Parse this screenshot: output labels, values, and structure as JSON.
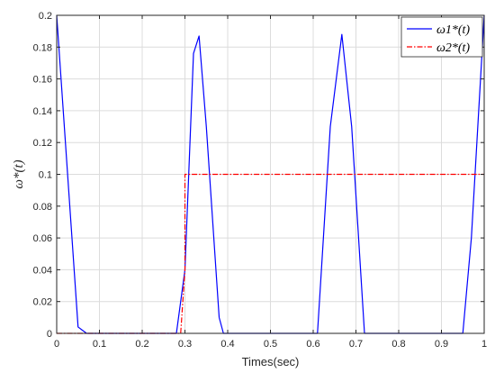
{
  "chart_data": {
    "type": "line",
    "xlabel": "Times(sec)",
    "ylabel": "ω*(t)",
    "xlim": [
      0,
      1
    ],
    "ylim": [
      0,
      0.2
    ],
    "xticks": [
      "0",
      "0.1",
      "0.2",
      "0.3",
      "0.4",
      "0.5",
      "0.6",
      "0.7",
      "0.8",
      "0.9",
      "1"
    ],
    "yticks": [
      "0",
      "0.02",
      "0.04",
      "0.06",
      "0.08",
      "0.1",
      "0.12",
      "0.14",
      "0.16",
      "0.18",
      "0.2"
    ],
    "grid": true,
    "legend_position": "top-right",
    "series": [
      {
        "name": "ω1*(t)",
        "color": "#0000ff",
        "style": "solid",
        "x": [
          0,
          0.05,
          0.06,
          0.07,
          0.28,
          0.3,
          0.32,
          0.333,
          0.35,
          0.38,
          0.39,
          0.61,
          0.64,
          0.667,
          0.69,
          0.72,
          0.95,
          0.97,
          1.0
        ],
        "y": [
          0.2,
          0.004,
          0.002,
          0,
          0,
          0.04,
          0.176,
          0.187,
          0.13,
          0.01,
          0,
          0,
          0.13,
          0.188,
          0.13,
          0,
          0,
          0.06,
          0.2
        ]
      },
      {
        "name": "ω2*(t)",
        "color": "#ff0000",
        "style": "dash-dot",
        "x": [
          0,
          0.29,
          0.3,
          0.3,
          1.0
        ],
        "y": [
          0,
          0,
          0.04,
          0.1,
          0.1
        ]
      }
    ]
  }
}
